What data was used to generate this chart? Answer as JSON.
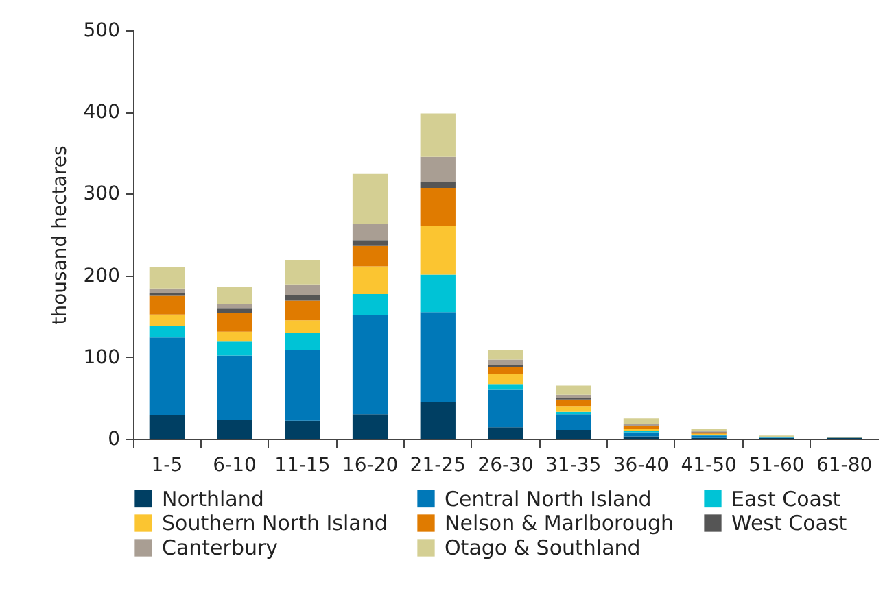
{
  "chart_data": {
    "type": "bar",
    "stacked": true,
    "ylabel": "thousand hectares",
    "categories": [
      "1-5",
      "6-10",
      "11-15",
      "16-20",
      "21-25",
      "26-30",
      "31-35",
      "36-40",
      "41-50",
      "51-60",
      "61-80"
    ],
    "ylim": [
      0,
      500
    ],
    "yticks": [
      0,
      100,
      200,
      300,
      400,
      500
    ],
    "grid": false,
    "legend": "bottom",
    "series": [
      {
        "name": "Northland",
        "color": "#003f63",
        "values": [
          29,
          23,
          22,
          30,
          45,
          14,
          11,
          3,
          1,
          1,
          0.8
        ]
      },
      {
        "name": "Central North Island",
        "color": "#0078b8",
        "values": [
          95,
          79,
          87,
          121,
          110,
          46,
          19,
          5,
          3,
          0.5,
          0.3
        ]
      },
      {
        "name": "East Coast",
        "color": "#00c3d6",
        "values": [
          14,
          17,
          21,
          26,
          46,
          7,
          3,
          2,
          1,
          0.2,
          0.1
        ]
      },
      {
        "name": "Southern North Island",
        "color": "#fbc531",
        "values": [
          14,
          12,
          15,
          34,
          59,
          12,
          7,
          2,
          1,
          0.2,
          0.1
        ]
      },
      {
        "name": "Nelson & Marlborough",
        "color": "#e07b00",
        "values": [
          23,
          23,
          24,
          25,
          47,
          9,
          8,
          3,
          2,
          0.3,
          0.2
        ]
      },
      {
        "name": "West Coast",
        "color": "#555555",
        "values": [
          3,
          6,
          7,
          7,
          7,
          2,
          2,
          1,
          0.5,
          0.1,
          0.1
        ]
      },
      {
        "name": "Canterbury",
        "color": "#a99e93",
        "values": [
          6,
          5,
          13,
          20,
          31,
          7,
          4,
          2,
          1,
          0.2,
          0.1
        ]
      },
      {
        "name": "Otago & Southland",
        "color": "#d4cf93",
        "values": [
          26,
          21,
          30,
          61,
          53,
          12,
          11,
          7,
          3,
          1.5,
          0.8
        ]
      }
    ]
  }
}
